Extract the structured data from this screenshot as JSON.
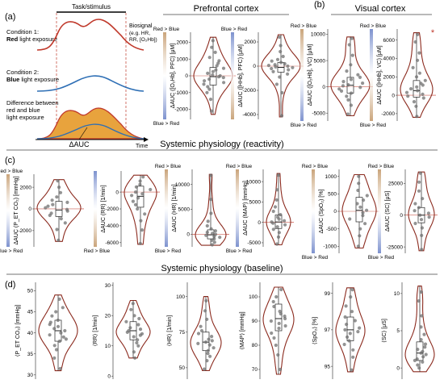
{
  "figure": {
    "panel_labels": [
      "(a)",
      "(b)",
      "(c)",
      "(d)"
    ],
    "section_titles": {
      "prefrontal": "Prefrontal cortex",
      "visual": "Visual cortex",
      "reactivity": "Systemic physiology (reactivity)",
      "baseline": "Systemic physiology (baseline)"
    },
    "schematic": {
      "task_label": "Task/stimulus",
      "biosignal_label": "Biosignal",
      "biosignal_examples": "(e.g. HR,",
      "biosignal_examples2": "RR, [O₂Hb])",
      "condition1": "Condition 1:",
      "condition1_light": "Red",
      "condition1_rest": " light exposure",
      "condition2": "Condition 2:",
      "condition2_light": "Blue",
      "condition2_rest": " light exposure",
      "difference": "Difference between",
      "difference2": "red and blue",
      "difference3": "light exposure",
      "auc_label": "ΔAUC",
      "time_label": "Time"
    },
    "colors": {
      "violin_outline": "#8B2A1E",
      "point": "#6f6f6f",
      "red_band": "#c49a6c",
      "blue_band": "#6f86c9",
      "fill_orange": "#e8a33d",
      "signal_red": "#c0392b",
      "signal_blue": "#2e6fb5"
    },
    "significance_marker": "*"
  },
  "chart_data": [
    {
      "type": "violin",
      "panel": "a",
      "group": "Prefrontal cortex",
      "ylabel": "ΔAUC ([O₂Hb], PFC) [μM]",
      "ticks": [
        -2000,
        -1000,
        0,
        1000,
        2000
      ],
      "ylim": [
        -2600,
        2600
      ],
      "band_top": "Red > Blue",
      "band_bottom": "Blue > Red",
      "band_top_color": "red",
      "summary": {
        "min": -2300,
        "q1": -550,
        "median": -50,
        "q3": 500,
        "max": 2300
      },
      "points": [
        -2100,
        -1400,
        -1000,
        -800,
        -650,
        -500,
        -400,
        -300,
        -200,
        -100,
        -60,
        0,
        50,
        150,
        250,
        350,
        450,
        600,
        750,
        900,
        1100,
        1400,
        1700,
        2100
      ]
    },
    {
      "type": "violin",
      "panel": "a",
      "group": "Prefrontal cortex",
      "ylabel": "ΔAUC ([HHb], PFC) [μM]",
      "ticks": [
        -4000,
        -2000,
        0,
        2000
      ],
      "ylim": [
        -4400,
        2800
      ],
      "band_top": "Blue > Red",
      "band_bottom": "",
      "band_top_color": "blue",
      "summary": {
        "min": -4200,
        "q1": -500,
        "median": -100,
        "q3": 300,
        "max": 2600
      },
      "points": [
        -4100,
        -2200,
        -1500,
        -900,
        -650,
        -450,
        -300,
        -200,
        -120,
        -60,
        0,
        60,
        120,
        200,
        300,
        420,
        550,
        800,
        1200,
        1700,
        2400
      ]
    },
    {
      "type": "violin",
      "panel": "b",
      "group": "Visual cortex",
      "ylabel": "ΔAUC ([O₂Hb], VC) [μM]",
      "ticks": [
        -5000,
        0,
        5000,
        10000
      ],
      "ylim": [
        -6500,
        11000
      ],
      "band_top": "Red > Blue",
      "band_bottom": "Blue > Red",
      "band_top_color": "red",
      "summary": {
        "min": -5500,
        "q1": -1200,
        "median": 300,
        "q3": 1800,
        "max": 9500
      },
      "points": [
        -5200,
        -3500,
        -2500,
        -1800,
        -1200,
        -800,
        -400,
        -100,
        200,
        400,
        700,
        1000,
        1400,
        1800,
        2300,
        3000,
        4200,
        6000,
        8000,
        9200
      ]
    },
    {
      "type": "violin",
      "panel": "b",
      "group": "Visual cortex",
      "ylabel": "ΔAUC ([HHb], VC) [μM]",
      "ticks": [
        -2000,
        0,
        2000,
        4000,
        6000
      ],
      "ylim": [
        -2800,
        7200
      ],
      "band_top": "Red > Blue",
      "band_bottom": "Blue > Red",
      "band_top_color": "blue",
      "significant": true,
      "summary": {
        "min": -2400,
        "q1": -200,
        "median": 500,
        "q3": 1600,
        "max": 6800
      },
      "points": [
        -2300,
        -1200,
        -700,
        -300,
        -100,
        100,
        300,
        500,
        700,
        900,
        1100,
        1300,
        1600,
        2000,
        2400,
        3000,
        3800,
        4600,
        5800,
        6600
      ]
    },
    {
      "type": "violin",
      "panel": "c",
      "group": "Reactivity",
      "ylabel": "ΔAUC (P_ET CO₂) [mmHg]",
      "ticks": [
        -2000,
        0,
        2000
      ],
      "ylim": [
        -3500,
        3200
      ],
      "band_top": "Red > Blue",
      "band_bottom": "Blue > Red",
      "band_top_color": "red",
      "summary": {
        "min": -3000,
        "q1": -700,
        "median": -100,
        "q3": 700,
        "max": 2700
      },
      "points": [
        -2900,
        -1900,
        -1300,
        -900,
        -600,
        -400,
        -200,
        -50,
        100,
        250,
        400,
        600,
        800,
        1100,
        1500,
        2000,
        2600
      ]
    },
    {
      "type": "violin",
      "panel": "c",
      "group": "Reactivity",
      "ylabel": "ΔAUC (RR) [1/min]",
      "ticks": [
        -6000,
        -4000,
        -2000,
        0
      ],
      "ylim": [
        -6500,
        2500
      ],
      "band_top": "",
      "band_bottom": "Red > Blue",
      "band_top_color": "blue",
      "summary": {
        "min": -6200,
        "q1": -1800,
        "median": -500,
        "q3": 700,
        "max": 2000
      },
      "points": [
        -6100,
        -4500,
        -3400,
        -2600,
        -2000,
        -1500,
        -1100,
        -700,
        -400,
        -200,
        0,
        300,
        600,
        900,
        1300,
        1800
      ]
    },
    {
      "type": "violin",
      "panel": "c",
      "group": "Reactivity",
      "ylabel": "ΔAUC (HR) [1/min]",
      "ticks": [
        0,
        5000,
        10000
      ],
      "ylim": [
        -2500,
        13000
      ],
      "band_top": "Red > Blue",
      "band_bottom": "Blue > Red",
      "band_top_color": "red",
      "summary": {
        "min": -2200,
        "q1": -900,
        "median": -100,
        "q3": 900,
        "max": 12000
      },
      "points": [
        -2100,
        -1600,
        -1200,
        -900,
        -600,
        -400,
        -200,
        0,
        200,
        400,
        700,
        1100,
        1700,
        2600,
        4200,
        7000,
        11800
      ]
    },
    {
      "type": "violin",
      "panel": "c",
      "group": "Reactivity",
      "ylabel": "ΔAUC (MAP) [mmHg]",
      "ticks": [
        -5000,
        0,
        5000,
        10000
      ],
      "ylim": [
        -6000,
        13000
      ],
      "band_top": "Red > Blue",
      "band_bottom": "Blue > Red",
      "band_top_color": "red",
      "summary": {
        "min": -5500,
        "q1": -1500,
        "median": 100,
        "q3": 1800,
        "max": 12000
      },
      "points": [
        -5300,
        -3600,
        -2500,
        -1700,
        -1100,
        -600,
        -200,
        100,
        400,
        800,
        1300,
        1900,
        2700,
        3800,
        5500,
        8000,
        11600
      ]
    },
    {
      "type": "violin",
      "panel": "c",
      "group": "Reactivity",
      "ylabel": "ΔAUC (SpO₂) [%]",
      "ticks": [
        -1000,
        -500,
        0,
        500,
        1000
      ],
      "ylim": [
        -1200,
        1200
      ],
      "band_top": "Red > Blue",
      "band_bottom": "Blue > Red",
      "band_top_color": "red",
      "summary": {
        "min": -1050,
        "q1": -300,
        "median": 30,
        "q3": 400,
        "max": 1050
      },
      "points": [
        -1000,
        -700,
        -500,
        -350,
        -220,
        -120,
        -40,
        30,
        120,
        220,
        320,
        450,
        600,
        800,
        1000
      ]
    },
    {
      "type": "violin",
      "panel": "c",
      "group": "Reactivity",
      "ylabel": "ΔAUC (SC) [μS]",
      "ticks": [
        -25000,
        0,
        25000
      ],
      "ylim": [
        -30000,
        36000
      ],
      "band_top": "Red > Blue",
      "band_bottom": "Blue > Red",
      "band_top_color": "red",
      "summary": {
        "min": -28000,
        "q1": -6000,
        "median": 0,
        "q3": 6000,
        "max": 34000
      },
      "points": [
        -27000,
        -16000,
        -10000,
        -6500,
        -3500,
        -1500,
        0,
        1500,
        3500,
        6000,
        9000,
        13000,
        19000,
        26000,
        33000
      ]
    },
    {
      "type": "violin",
      "panel": "d",
      "group": "Baseline",
      "ylabel": "⟨P_ET CO₂⟩ [mmHg]",
      "ticks": [
        30,
        35,
        40,
        45,
        50
      ],
      "ylim": [
        29,
        52
      ],
      "summary": {
        "min": 31,
        "q1": 38,
        "median": 40.5,
        "q3": 43,
        "max": 49
      },
      "points": [
        31.5,
        34,
        36,
        37,
        38,
        38.5,
        39,
        39.5,
        40,
        40.5,
        41,
        41.5,
        42,
        42.5,
        43,
        44,
        45,
        46,
        48
      ]
    },
    {
      "type": "violin",
      "panel": "d",
      "group": "Baseline",
      "ylabel": "⟨RR⟩ [1/min]",
      "ticks": [
        0,
        10,
        20,
        30
      ],
      "ylim": [
        -1,
        31
      ],
      "summary": {
        "min": 6,
        "q1": 12,
        "median": 15,
        "q3": 18,
        "max": 25
      },
      "points": [
        6,
        8,
        10,
        11,
        12,
        13,
        13.5,
        14,
        14.5,
        15,
        15.5,
        16,
        17,
        18,
        19,
        20,
        22,
        24
      ]
    },
    {
      "type": "violin",
      "panel": "d",
      "group": "Baseline",
      "ylabel": "⟨HR⟩ [1/min]",
      "ticks": [
        50,
        75,
        100
      ],
      "ylim": [
        42,
        110
      ],
      "summary": {
        "min": 48,
        "q1": 62,
        "median": 68,
        "q3": 75,
        "max": 100
      },
      "points": [
        49,
        55,
        58,
        60,
        62,
        64,
        66,
        67,
        68,
        69,
        70,
        72,
        74,
        76,
        79,
        84,
        90,
        97
      ]
    },
    {
      "type": "violin",
      "panel": "d",
      "group": "Baseline",
      "ylabel": "⟨MAP⟩ [mmHg]",
      "ticks": [
        70,
        80,
        90,
        100
      ],
      "ylim": [
        66,
        106
      ],
      "summary": {
        "min": 68,
        "q1": 86,
        "median": 91,
        "q3": 97,
        "max": 104
      },
      "points": [
        70,
        76,
        80,
        83,
        85,
        87,
        88,
        89,
        90,
        91,
        92,
        93,
        94,
        96,
        98,
        100,
        103
      ]
    },
    {
      "type": "violin",
      "panel": "d",
      "group": "Baseline",
      "ylabel": "⟨SpO₂⟩ [%]",
      "ticks": [
        95,
        97,
        99
      ],
      "ylim": [
        94.3,
        99.6
      ],
      "summary": {
        "min": 94.7,
        "q1": 96.4,
        "median": 97,
        "q3": 97.7,
        "max": 99.3
      },
      "points": [
        94.8,
        95.5,
        95.9,
        96.2,
        96.4,
        96.6,
        96.8,
        96.9,
        97,
        97.1,
        97.3,
        97.5,
        97.7,
        98,
        98.3,
        98.8,
        99.2
      ]
    },
    {
      "type": "violin",
      "panel": "d",
      "group": "Baseline",
      "ylabel": "⟨SC⟩ [μS]",
      "ticks": [
        0,
        5,
        10
      ],
      "ylim": [
        -1.5,
        11.5
      ],
      "summary": {
        "min": -0.5,
        "q1": 1,
        "median": 2,
        "q3": 3.5,
        "max": 11
      },
      "points": [
        0,
        0.4,
        0.8,
        1,
        1.2,
        1.5,
        1.8,
        2,
        2.2,
        2.5,
        2.8,
        3.2,
        3.8,
        4.5,
        5.5,
        7,
        9,
        10.2
      ]
    }
  ]
}
